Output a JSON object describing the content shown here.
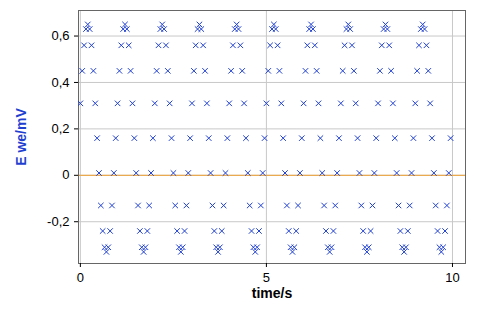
{
  "chart_data": {
    "type": "scatter",
    "x_label": "time/s",
    "y_label": "E we/mV",
    "color": "#1f3fd0",
    "marker": "x",
    "grid": true,
    "xlim": [
      -0.05,
      10.35
    ],
    "ylim": [
      -0.38,
      0.71
    ],
    "xticks": [
      0,
      5,
      10
    ],
    "yticks": [
      {
        "value": -0.2,
        "label": "-0,2"
      },
      0,
      {
        "value": 0.2,
        "label": "0,2"
      },
      {
        "value": 0.4,
        "label": "0,4"
      },
      {
        "value": 0.6,
        "label": "0,6"
      }
    ],
    "x": [
      0,
      0.05,
      0.1,
      0.15,
      0.2,
      0.25,
      0.3,
      0.35,
      0.4,
      0.45,
      0.5,
      0.55,
      0.6,
      0.65,
      0.7,
      0.75,
      0.8,
      0.85,
      0.9,
      0.95,
      1,
      1.05,
      1.1,
      1.15,
      1.2,
      1.25,
      1.3,
      1.35,
      1.4,
      1.45,
      1.5,
      1.55,
      1.6,
      1.65,
      1.7,
      1.75,
      1.8,
      1.85,
      1.9,
      1.95,
      2,
      2.05,
      2.1,
      2.15,
      2.2,
      2.25,
      2.3,
      2.35,
      2.4,
      2.45,
      2.5,
      2.55,
      2.6,
      2.65,
      2.7,
      2.75,
      2.8,
      2.85,
      2.9,
      2.95,
      3,
      3.05,
      3.1,
      3.15,
      3.2,
      3.25,
      3.3,
      3.35,
      3.4,
      3.45,
      3.5,
      3.55,
      3.6,
      3.65,
      3.7,
      3.75,
      3.8,
      3.85,
      3.9,
      3.95,
      4,
      4.05,
      4.1,
      4.15,
      4.2,
      4.25,
      4.3,
      4.35,
      4.4,
      4.45,
      4.5,
      4.55,
      4.6,
      4.65,
      4.7,
      4.75,
      4.8,
      4.85,
      4.9,
      4.95,
      5,
      5.05,
      5.1,
      5.15,
      5.2,
      5.25,
      5.3,
      5.35,
      5.4,
      5.45,
      5.5,
      5.55,
      5.6,
      5.65,
      5.7,
      5.75,
      5.8,
      5.85,
      5.9,
      5.95,
      6,
      6.05,
      6.1,
      6.15,
      6.2,
      6.25,
      6.3,
      6.35,
      6.4,
      6.45,
      6.5,
      6.55,
      6.6,
      6.65,
      6.7,
      6.75,
      6.8,
      6.85,
      6.9,
      6.95,
      7,
      7.05,
      7.1,
      7.15,
      7.2,
      7.25,
      7.3,
      7.35,
      7.4,
      7.45,
      7.5,
      7.55,
      7.6,
      7.65,
      7.7,
      7.75,
      7.8,
      7.85,
      7.9,
      7.95,
      8,
      8.05,
      8.1,
      8.15,
      8.2,
      8.25,
      8.3,
      8.35,
      8.4,
      8.45,
      8.5,
      8.55,
      8.6,
      8.65,
      8.7,
      8.75,
      8.8,
      8.85,
      8.9,
      8.95,
      9,
      9.05,
      9.1,
      9.15,
      9.2,
      9.25,
      9.3,
      9.35,
      9.4,
      9.45,
      9.5,
      9.55,
      9.6,
      9.65,
      9.7,
      9.75,
      9.8,
      9.85,
      9.9,
      9.95
    ],
    "values": [
      0.31,
      0.45,
      0.56,
      0.63,
      0.65,
      0.63,
      0.56,
      0.45,
      0.31,
      0.16,
      0.01,
      -0.13,
      -0.24,
      -0.31,
      -0.33,
      -0.31,
      -0.24,
      -0.13,
      0.01,
      0.16,
      0.31,
      0.45,
      0.56,
      0.63,
      0.65,
      0.63,
      0.56,
      0.45,
      0.31,
      0.16,
      0.01,
      -0.13,
      -0.24,
      -0.31,
      -0.33,
      -0.31,
      -0.24,
      -0.13,
      0.01,
      0.16,
      0.31,
      0.45,
      0.56,
      0.63,
      0.65,
      0.63,
      0.56,
      0.45,
      0.31,
      0.16,
      0.01,
      -0.13,
      -0.24,
      -0.31,
      -0.33,
      -0.31,
      -0.24,
      -0.13,
      0.01,
      0.16,
      0.31,
      0.45,
      0.56,
      0.63,
      0.65,
      0.63,
      0.56,
      0.45,
      0.31,
      0.16,
      0.01,
      -0.13,
      -0.24,
      -0.31,
      -0.33,
      -0.31,
      -0.24,
      -0.13,
      0.01,
      0.16,
      0.31,
      0.45,
      0.56,
      0.63,
      0.65,
      0.63,
      0.56,
      0.45,
      0.31,
      0.16,
      0.01,
      -0.13,
      -0.24,
      -0.31,
      -0.33,
      -0.31,
      -0.24,
      -0.13,
      0.01,
      0.16,
      0.31,
      0.45,
      0.56,
      0.63,
      0.65,
      0.63,
      0.56,
      0.45,
      0.31,
      0.16,
      0.01,
      -0.13,
      -0.24,
      -0.31,
      -0.33,
      -0.31,
      -0.24,
      -0.13,
      0.01,
      0.16,
      0.31,
      0.45,
      0.56,
      0.63,
      0.65,
      0.63,
      0.56,
      0.45,
      0.31,
      0.16,
      0.01,
      -0.13,
      -0.24,
      -0.31,
      -0.33,
      -0.31,
      -0.24,
      -0.13,
      0.01,
      0.16,
      0.31,
      0.45,
      0.56,
      0.63,
      0.65,
      0.63,
      0.56,
      0.45,
      0.31,
      0.16,
      0.01,
      -0.13,
      -0.24,
      -0.31,
      -0.33,
      -0.31,
      -0.24,
      -0.13,
      0.01,
      0.16,
      0.31,
      0.45,
      0.56,
      0.63,
      0.65,
      0.63,
      0.56,
      0.45,
      0.31,
      0.16,
      0.01,
      -0.13,
      -0.24,
      -0.31,
      -0.33,
      -0.31,
      -0.24,
      -0.13,
      0.01,
      0.16,
      0.31,
      0.45,
      0.56,
      0.63,
      0.65,
      0.63,
      0.56,
      0.45,
      0.31,
      0.16,
      0.01,
      -0.13,
      -0.24,
      -0.31,
      -0.33,
      -0.31,
      -0.24,
      -0.13,
      0.01,
      0.16
    ]
  }
}
